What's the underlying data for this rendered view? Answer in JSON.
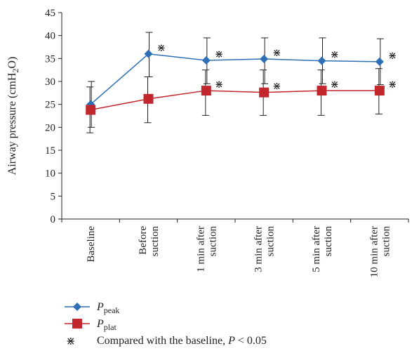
{
  "chart_data": {
    "type": "line",
    "ylabel": "Airway pressure (cmH2O)",
    "ylabel_parts": {
      "main": "Airway pressure (cmH",
      "sub": "2",
      "end": "O)"
    },
    "ylim": [
      0,
      45
    ],
    "yticks": [
      0,
      5,
      10,
      15,
      20,
      25,
      30,
      35,
      40,
      45
    ],
    "categories": [
      [
        "Baseline"
      ],
      [
        "Before",
        "suction"
      ],
      [
        "1 min after",
        "suction"
      ],
      [
        "3 min after",
        "suction"
      ],
      [
        "5 min after",
        "suction"
      ],
      [
        "10 min after",
        "suction"
      ]
    ],
    "series": [
      {
        "name": "Ppeak",
        "name_main": "P",
        "name_sub": "peak",
        "color": "#2e6fb5",
        "marker": "diamond",
        "values": [
          25.0,
          36.0,
          34.6,
          34.9,
          34.5,
          34.3
        ],
        "err_low": [
          20.0,
          31.0,
          29.5,
          29.5,
          29.5,
          29.3
        ],
        "err_high": [
          30.0,
          40.7,
          39.5,
          39.5,
          39.5,
          39.3
        ],
        "significant": [
          false,
          true,
          true,
          true,
          true,
          true
        ]
      },
      {
        "name": "Pplat",
        "name_main": "P",
        "name_sub": "plat",
        "color": "#c1272d",
        "marker": "square",
        "values": [
          23.8,
          26.2,
          28.0,
          27.6,
          28.0,
          28.0
        ],
        "err_low": [
          18.8,
          21.0,
          22.6,
          22.6,
          22.6,
          22.9
        ],
        "err_high": [
          28.8,
          31.0,
          32.5,
          32.5,
          32.5,
          32.8
        ],
        "significant": [
          false,
          false,
          true,
          true,
          true,
          true
        ]
      }
    ],
    "sig_symbol": "⋇",
    "note": {
      "symbol": "⋇",
      "text_before": "Compared with the baseline, ",
      "p": "P",
      "text_after": " < 0.05"
    },
    "grid": false,
    "legend_position": "bottom-left"
  }
}
